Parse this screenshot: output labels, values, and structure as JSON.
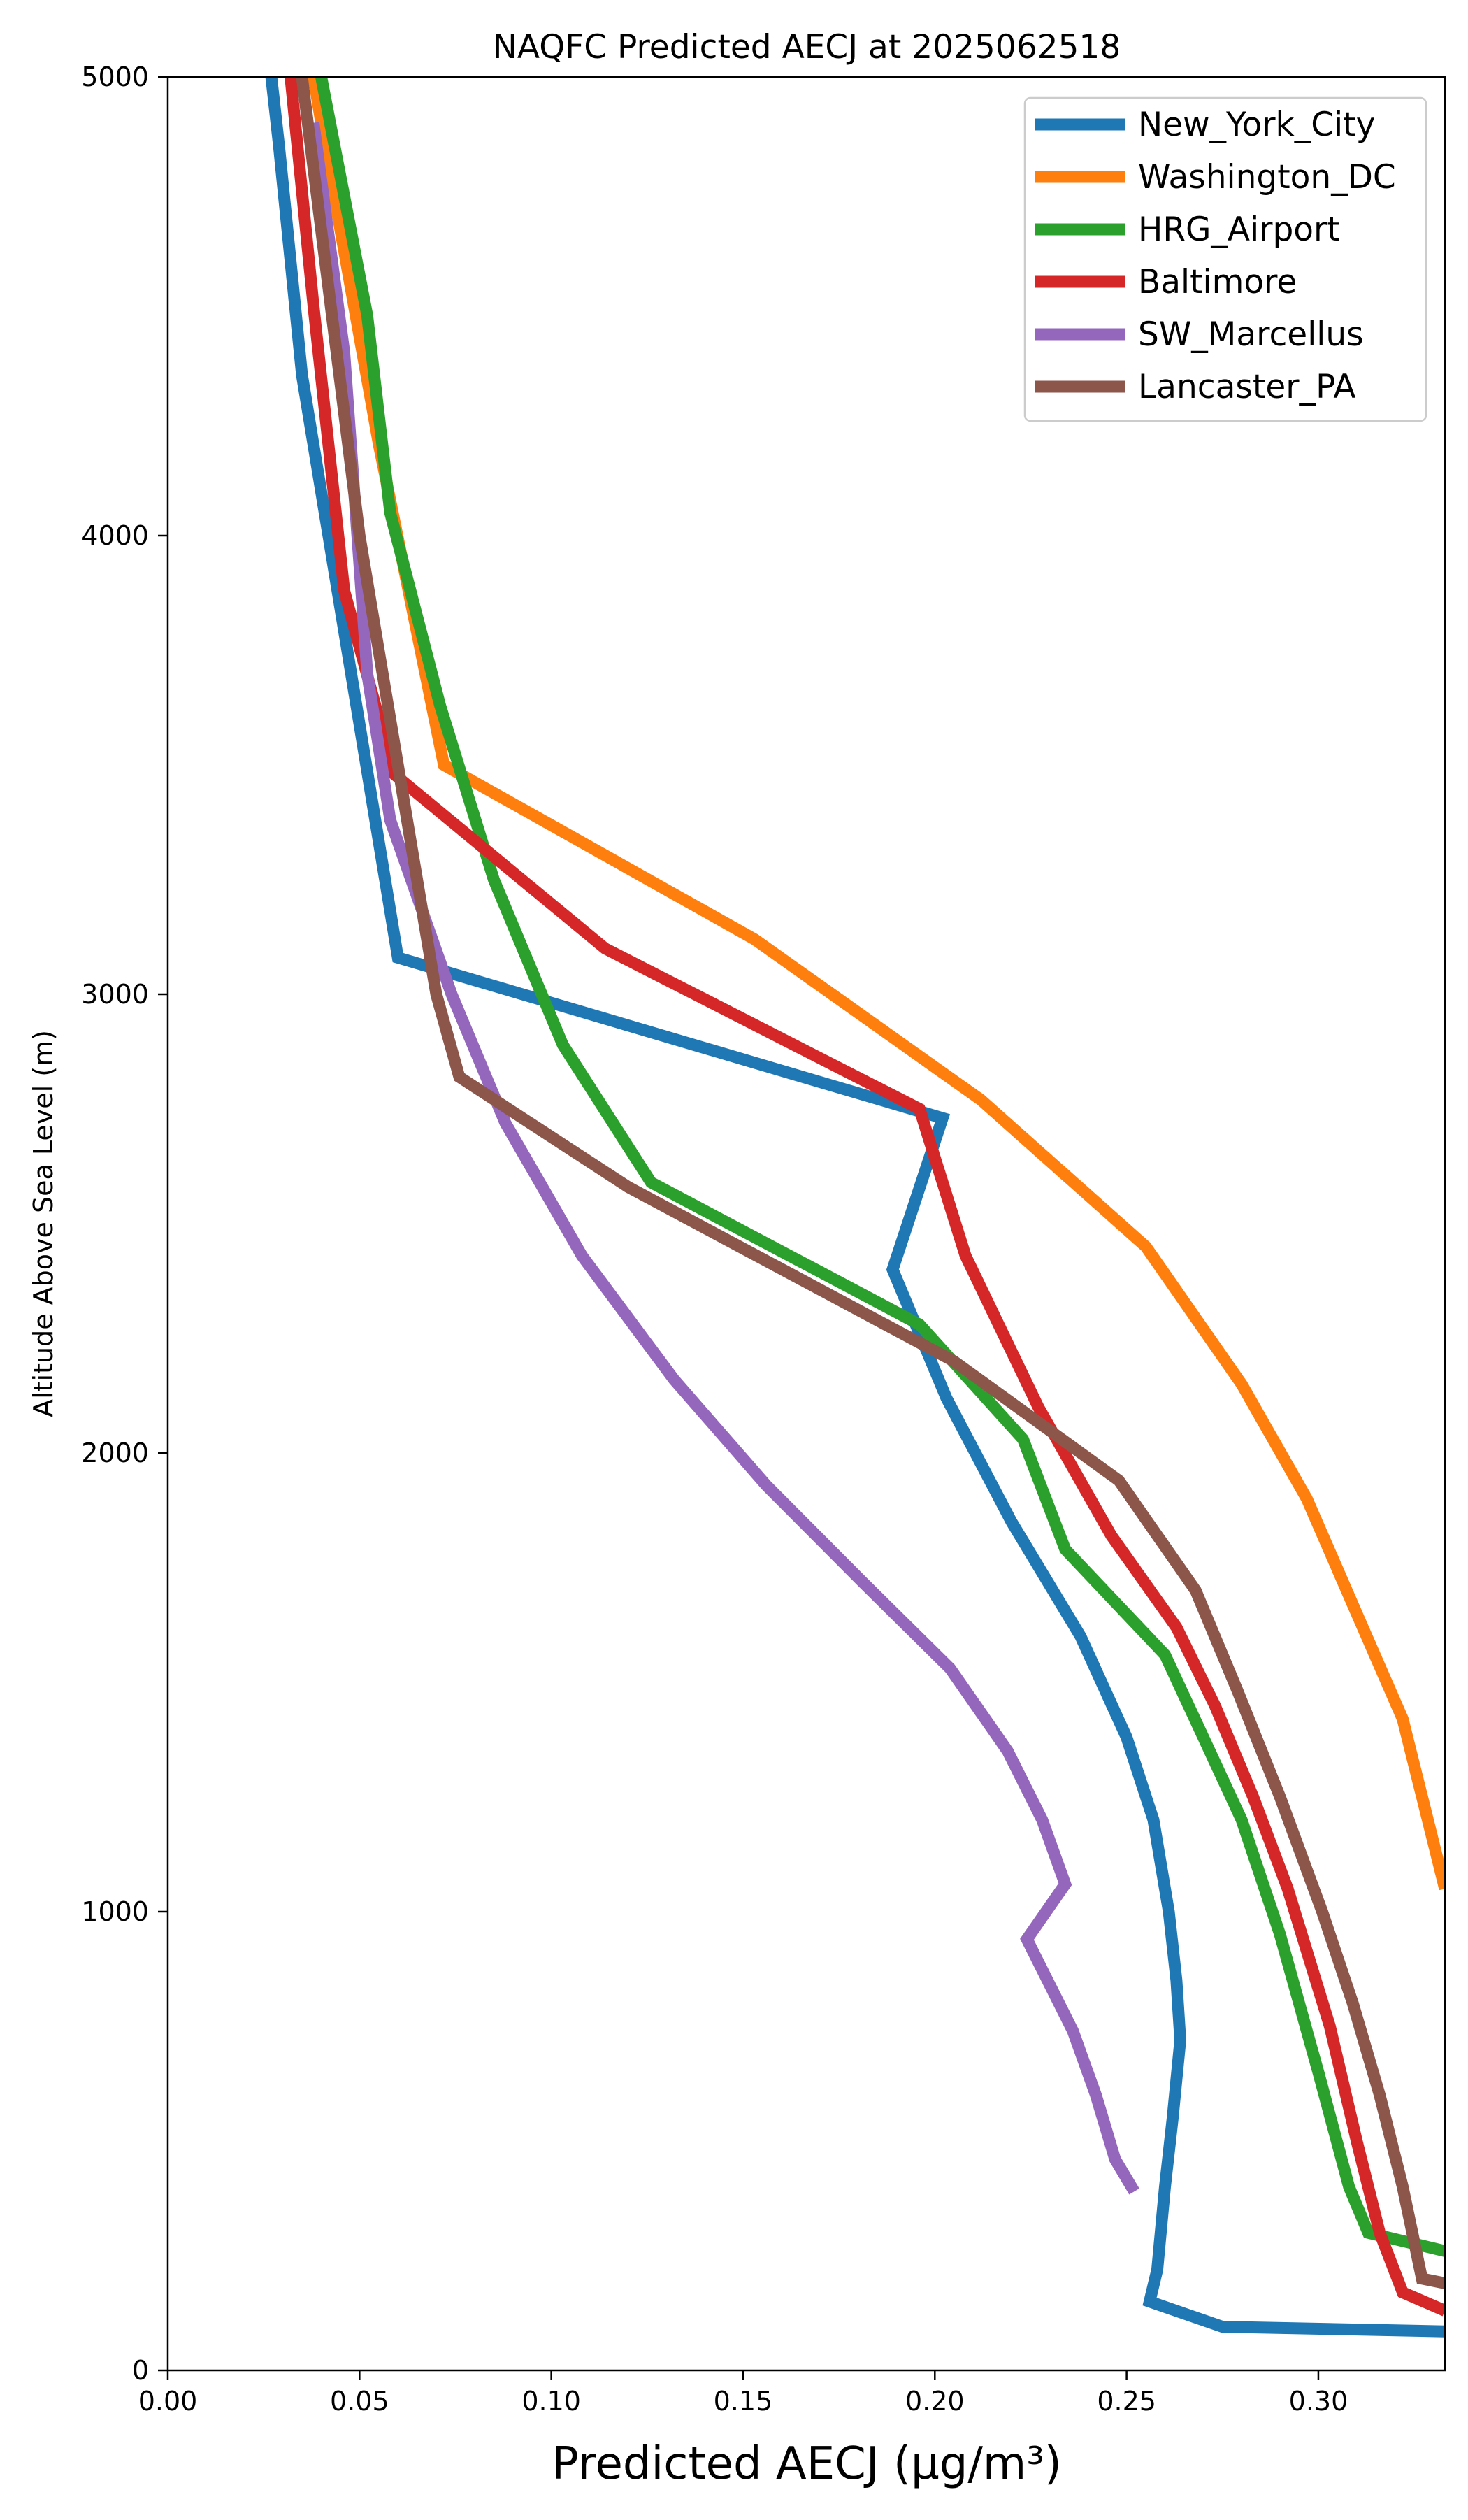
{
  "chart_data": {
    "type": "line",
    "title": "NAQFC Predicted AECJ at 2025062518",
    "xlabel": "Predicted AECJ (μg/m³)",
    "ylabel": "Altitude Above Sea Level (m)",
    "xlim": [
      0.0,
      0.333
    ],
    "ylim": [
      0,
      5000
    ],
    "x_ticks": [
      0.0,
      0.05,
      0.1,
      0.15,
      0.2,
      0.25,
      0.3
    ],
    "x_tick_labels": [
      "0.00",
      "0.05",
      "0.10",
      "0.15",
      "0.20",
      "0.25",
      "0.30"
    ],
    "y_ticks": [
      0,
      1000,
      2000,
      3000,
      4000,
      5000
    ],
    "y_tick_labels": [
      "0",
      "1000",
      "2000",
      "3000",
      "4000",
      "5000"
    ],
    "grid": false,
    "legend_position": "top-right",
    "series": [
      {
        "name": "New_York_City",
        "color": "#1f77b4",
        "points": [
          [
            0.333,
            85
          ],
          [
            0.275,
            95
          ],
          [
            0.256,
            150
          ],
          [
            0.258,
            220
          ],
          [
            0.26,
            400
          ],
          [
            0.262,
            550
          ],
          [
            0.264,
            720
          ],
          [
            0.263,
            850
          ],
          [
            0.261,
            1000
          ],
          [
            0.257,
            1200
          ],
          [
            0.25,
            1380
          ],
          [
            0.238,
            1600
          ],
          [
            0.22,
            1850
          ],
          [
            0.203,
            2120
          ],
          [
            0.189,
            2400
          ],
          [
            0.202,
            2730
          ],
          [
            0.06,
            3080
          ],
          [
            0.035,
            4350
          ],
          [
            0.029,
            4850
          ],
          [
            0.027,
            5000
          ]
        ]
      },
      {
        "name": "Washington_DC",
        "color": "#ff7f0e",
        "points": [
          [
            0.333,
            1050
          ],
          [
            0.322,
            1420
          ],
          [
            0.31,
            1650
          ],
          [
            0.297,
            1900
          ],
          [
            0.28,
            2150
          ],
          [
            0.255,
            2450
          ],
          [
            0.212,
            2770
          ],
          [
            0.153,
            3120
          ],
          [
            0.072,
            3500
          ],
          [
            0.055,
            4200
          ],
          [
            0.04,
            4900
          ],
          [
            0.038,
            5000
          ]
        ]
      },
      {
        "name": "HRG_Airport",
        "color": "#2ca02c",
        "points": [
          [
            0.333,
            260
          ],
          [
            0.313,
            300
          ],
          [
            0.308,
            400
          ],
          [
            0.3,
            650
          ],
          [
            0.29,
            950
          ],
          [
            0.28,
            1200
          ],
          [
            0.27,
            1380
          ],
          [
            0.26,
            1560
          ],
          [
            0.234,
            1790
          ],
          [
            0.223,
            2030
          ],
          [
            0.196,
            2280
          ],
          [
            0.126,
            2590
          ],
          [
            0.103,
            2890
          ],
          [
            0.085,
            3250
          ],
          [
            0.071,
            3630
          ],
          [
            0.058,
            4050
          ],
          [
            0.052,
            4480
          ],
          [
            0.04,
            5000
          ]
        ]
      },
      {
        "name": "Baltimore",
        "color": "#d62728",
        "points": [
          [
            0.333,
            130
          ],
          [
            0.322,
            170
          ],
          [
            0.316,
            300
          ],
          [
            0.31,
            500
          ],
          [
            0.303,
            750
          ],
          [
            0.292,
            1050
          ],
          [
            0.283,
            1250
          ],
          [
            0.273,
            1450
          ],
          [
            0.263,
            1620
          ],
          [
            0.246,
            1820
          ],
          [
            0.227,
            2100
          ],
          [
            0.208,
            2430
          ],
          [
            0.196,
            2750
          ],
          [
            0.114,
            3100
          ],
          [
            0.059,
            3480
          ],
          [
            0.046,
            3880
          ],
          [
            0.038,
            4500
          ],
          [
            0.032,
            5000
          ]
        ]
      },
      {
        "name": "SW_Marcellus",
        "color": "#9467bd",
        "points": [
          [
            0.252,
            390
          ],
          [
            0.247,
            460
          ],
          [
            0.242,
            600
          ],
          [
            0.236,
            740
          ],
          [
            0.23,
            840
          ],
          [
            0.224,
            940
          ],
          [
            0.234,
            1060
          ],
          [
            0.228,
            1200
          ],
          [
            0.219,
            1350
          ],
          [
            0.204,
            1530
          ],
          [
            0.181,
            1720
          ],
          [
            0.156,
            1930
          ],
          [
            0.132,
            2160
          ],
          [
            0.108,
            2430
          ],
          [
            0.088,
            2720
          ],
          [
            0.074,
            3000
          ],
          [
            0.058,
            3380
          ],
          [
            0.052,
            3700
          ],
          [
            0.046,
            4400
          ],
          [
            0.038,
            4900
          ]
        ]
      },
      {
        "name": "Lancaster_PA",
        "color": "#8c564b",
        "points": [
          [
            0.333,
            190
          ],
          [
            0.327,
            200
          ],
          [
            0.322,
            400
          ],
          [
            0.316,
            600
          ],
          [
            0.309,
            800
          ],
          [
            0.301,
            1000
          ],
          [
            0.29,
            1250
          ],
          [
            0.279,
            1480
          ],
          [
            0.268,
            1700
          ],
          [
            0.248,
            1940
          ],
          [
            0.205,
            2200
          ],
          [
            0.12,
            2580
          ],
          [
            0.076,
            2820
          ],
          [
            0.07,
            3000
          ],
          [
            0.064,
            3300
          ],
          [
            0.05,
            4000
          ],
          [
            0.038,
            4800
          ],
          [
            0.035,
            5000
          ]
        ]
      }
    ]
  }
}
